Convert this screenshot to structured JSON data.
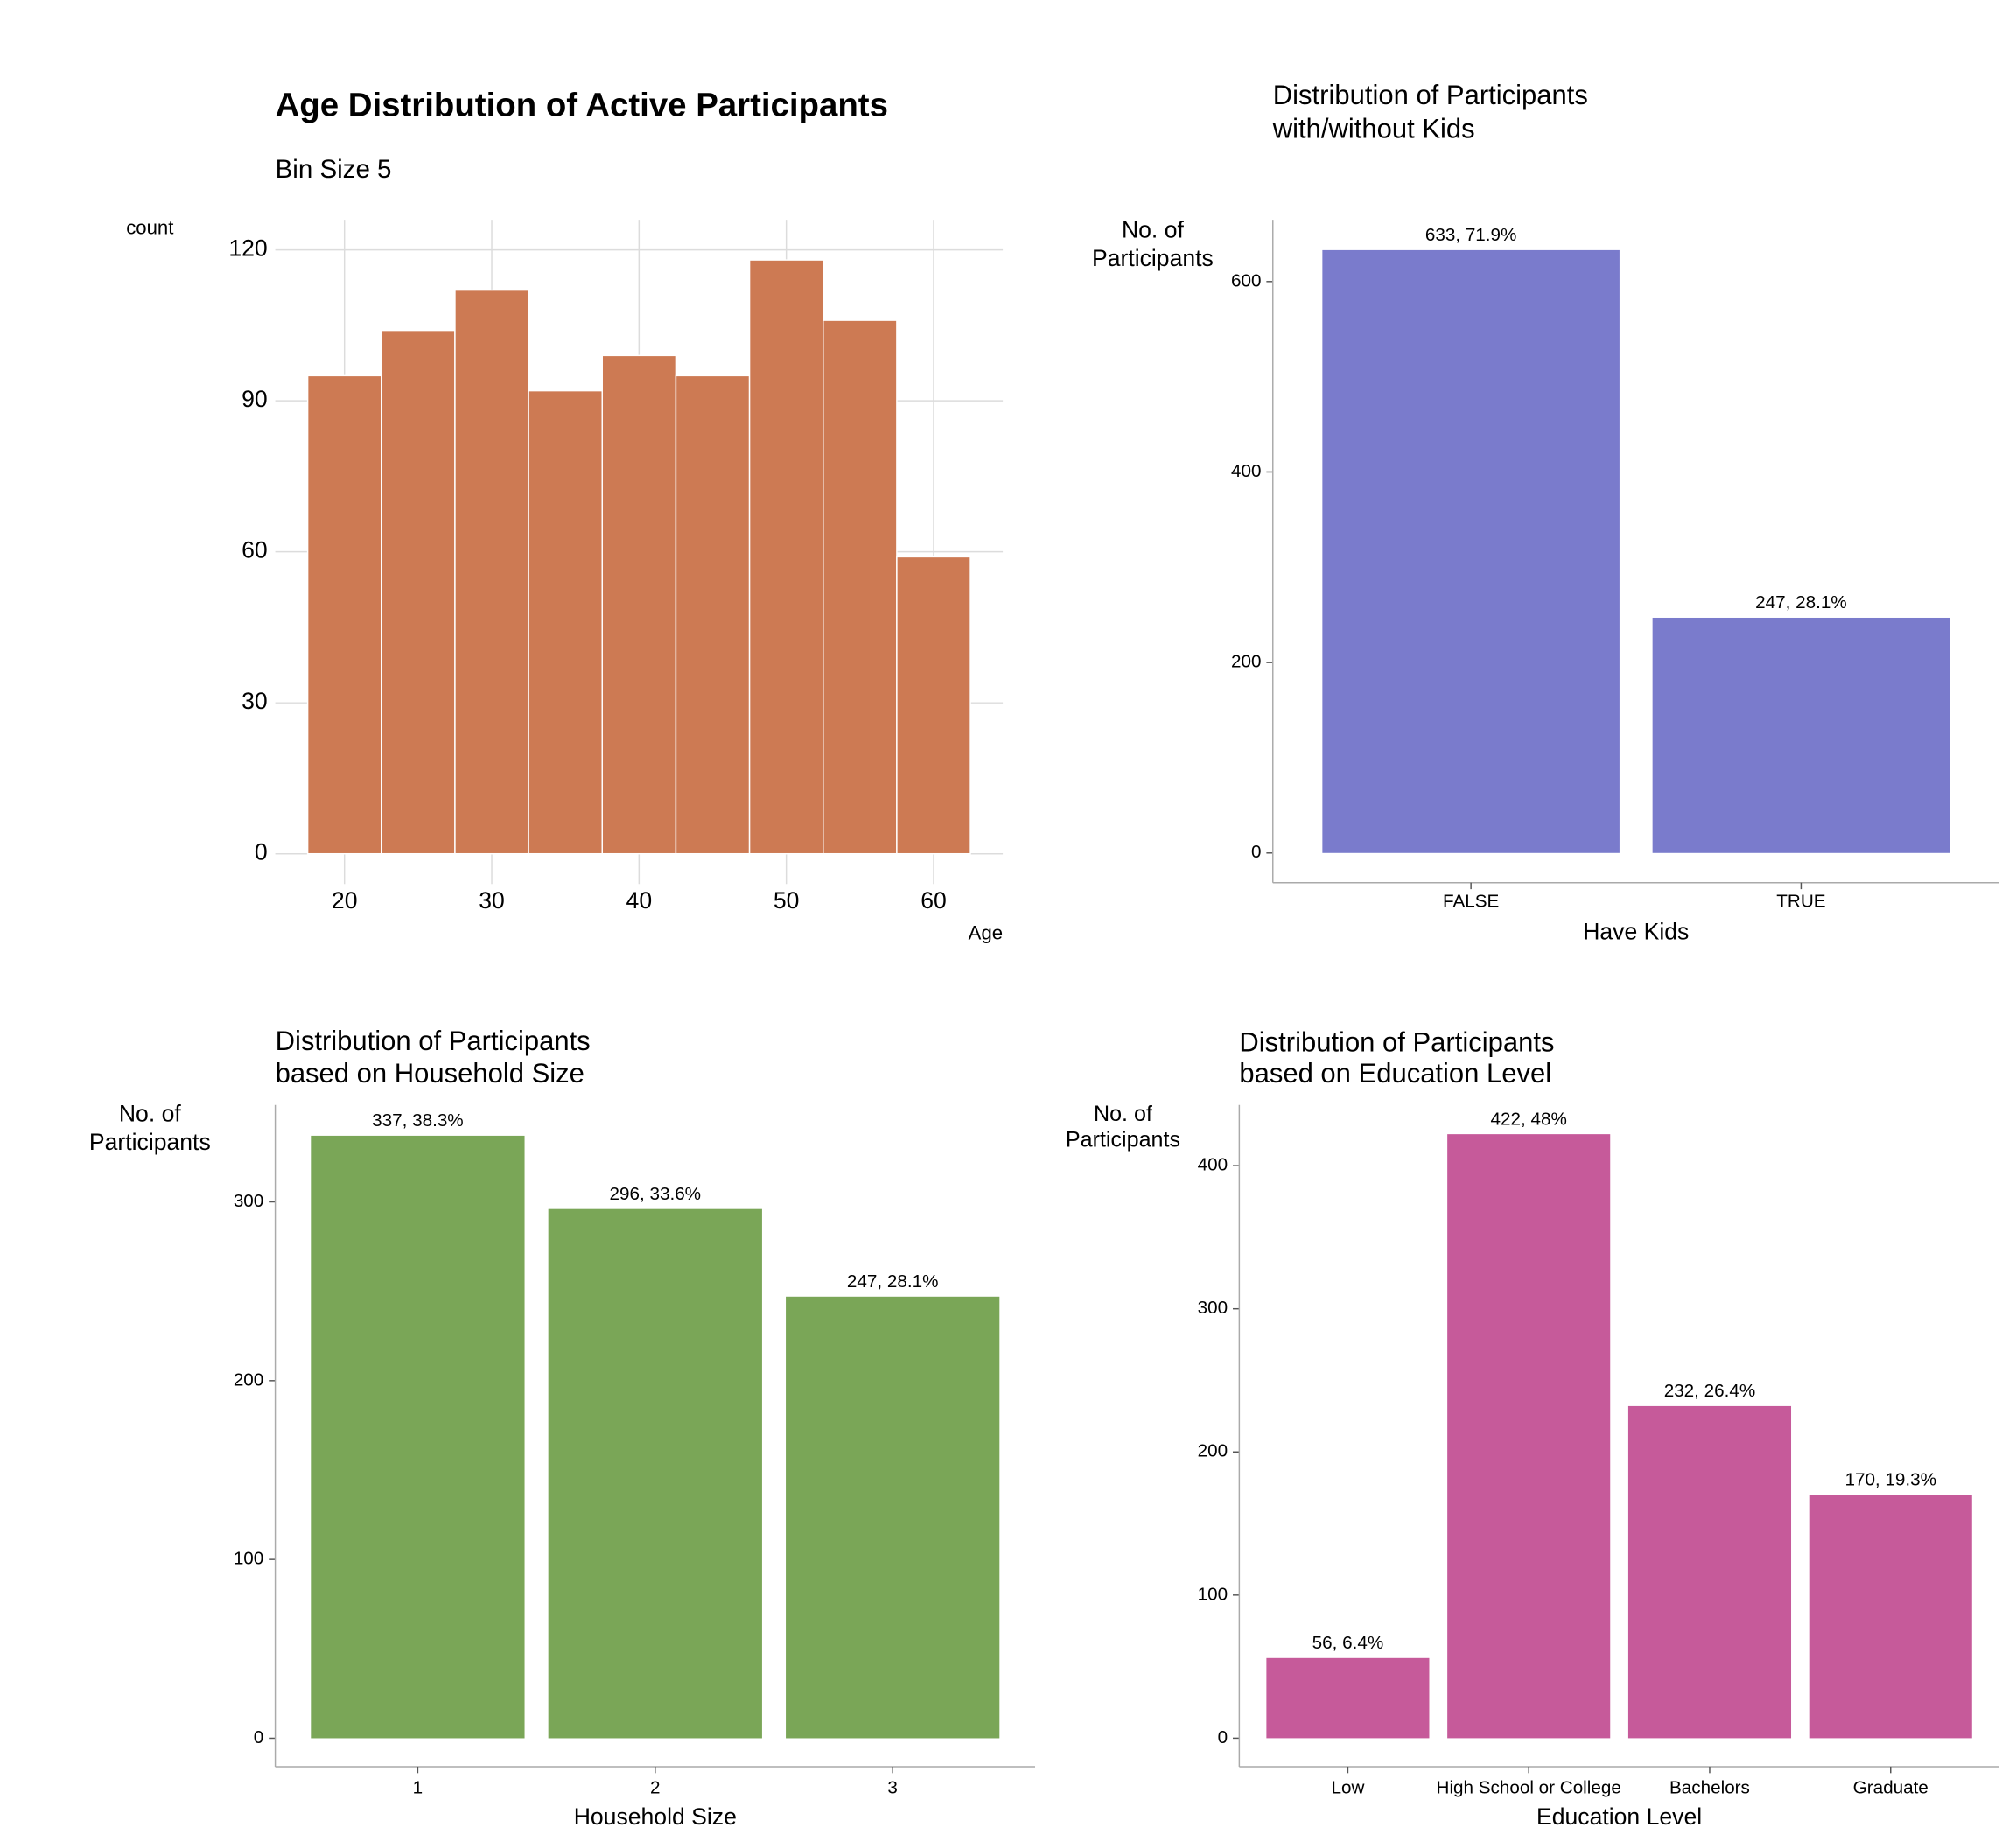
{
  "chart_data": [
    {
      "type": "histogram",
      "title": [
        "Age Distribution of Active Participants"
      ],
      "subtitle": "Bin Size 5",
      "x_label": "Age",
      "y_label": [
        "count"
      ],
      "bins": [
        17.5,
        22.5,
        27.5,
        32.5,
        37.5,
        42.5,
        47.5,
        52.5,
        57.5,
        62.5
      ],
      "values": [
        95,
        104,
        112,
        92,
        99,
        95,
        118,
        106,
        59
      ],
      "color": "#cd7a53",
      "xlim": [
        15.3,
        64.7
      ],
      "xticks": [
        20,
        30,
        40,
        50,
        60
      ],
      "ylim": [
        -6,
        126
      ],
      "yticks": [
        0,
        30,
        60,
        90,
        120
      ],
      "grid": true
    },
    {
      "type": "bar",
      "title": [
        "Distribution of Participants",
        "with/without Kids"
      ],
      "x_label": "Have Kids",
      "y_label": [
        "No. of",
        "Participants"
      ],
      "categories": [
        "FALSE",
        "TRUE"
      ],
      "values": [
        633,
        247
      ],
      "value_labels": [
        "633, 71.9%",
        "247, 28.1%"
      ],
      "color": "#7a7bcc",
      "ylim": [
        -31.2,
        665
      ],
      "yticks": [
        0,
        200,
        400,
        600
      ],
      "grid": false
    },
    {
      "type": "bar",
      "title": [
        "Distribution of Participants",
        "based on Household Size"
      ],
      "x_label": "Household Size",
      "y_label": [
        "No. of",
        "Participants"
      ],
      "categories": [
        "1",
        "2",
        "3"
      ],
      "values": [
        337,
        296,
        247
      ],
      "value_labels": [
        "337, 38.3%",
        "296, 33.6%",
        "247, 28.1%"
      ],
      "color": "#7aa657",
      "ylim": [
        -15.9,
        354.2
      ],
      "yticks": [
        0,
        100,
        200,
        300
      ],
      "grid": false
    },
    {
      "type": "bar",
      "title": [
        "Distribution of Participants",
        "based on Education Level"
      ],
      "x_label": "Education Level",
      "y_label": [
        "No. of",
        "Participants"
      ],
      "categories": [
        "Low",
        "High School or College",
        "Bachelors",
        "Graduate"
      ],
      "values": [
        56,
        422,
        232,
        170
      ],
      "value_labels": [
        "56, 6.4%",
        "422, 48%",
        "232, 26.4%",
        "170, 19.3%"
      ],
      "color": "#c65a9a",
      "ylim": [
        -19.9,
        442.4
      ],
      "yticks": [
        0,
        100,
        200,
        300,
        400
      ],
      "grid": false
    }
  ]
}
